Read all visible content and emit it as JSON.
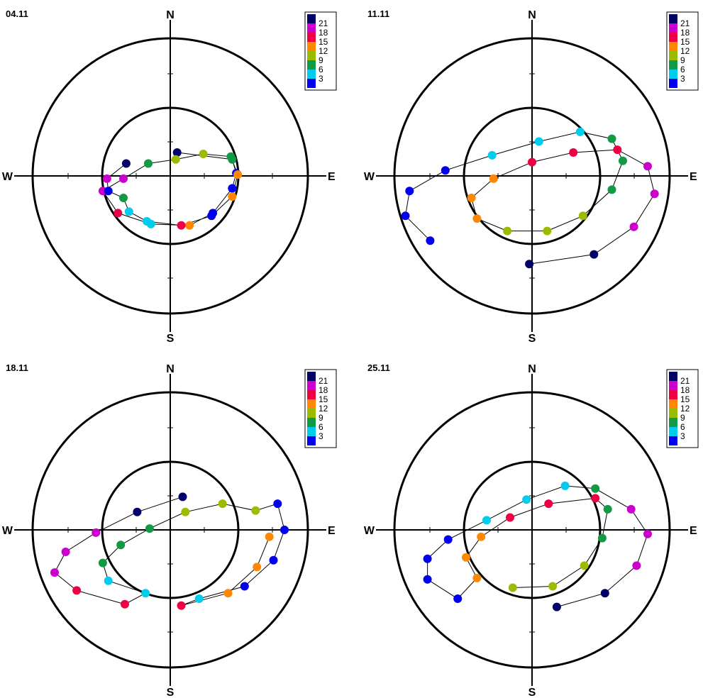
{
  "chart_data": [
    {
      "type": "scatter",
      "title": "04.11",
      "directions": {
        "north": "N",
        "south": "S",
        "east": "E",
        "west": "W"
      },
      "legend": {
        "position": "top-right",
        "labels": [
          "21",
          "18",
          "15",
          "12",
          "9",
          "6",
          "3"
        ]
      },
      "color_scale": [
        "#000066",
        "#cc00cc",
        "#ee0044",
        "#ff8800",
        "#99bb00",
        "#119944",
        "#00ccee",
        "#0000ee"
      ],
      "points": [
        {
          "x": 0.05,
          "y": 0.17,
          "c": 0
        },
        {
          "x": 0.45,
          "y": 0.12,
          "c": 5
        },
        {
          "x": 0.48,
          "y": 0.02,
          "c": 7
        },
        {
          "x": 0.45,
          "y": -0.09,
          "c": 7
        },
        {
          "x": 0.31,
          "y": -0.27,
          "c": 7
        },
        {
          "x": 0.14,
          "y": -0.36,
          "c": 3
        },
        {
          "x": -0.14,
          "y": -0.35,
          "c": 6
        },
        {
          "x": -0.38,
          "y": -0.27,
          "c": 2
        },
        {
          "x": -0.49,
          "y": -0.11,
          "c": 1
        },
        {
          "x": -0.34,
          "y": -0.02,
          "c": 1
        },
        {
          "x": -0.16,
          "y": 0.09,
          "c": 5
        },
        {
          "x": 0.04,
          "y": 0.12,
          "c": 4
        },
        {
          "x": 0.24,
          "y": 0.16,
          "c": 4
        },
        {
          "x": 0.44,
          "y": 0.14,
          "c": 5
        },
        {
          "x": 0.49,
          "y": 0.01,
          "c": 3
        },
        {
          "x": 0.45,
          "y": -0.15,
          "c": 3
        },
        {
          "x": 0.3,
          "y": -0.29,
          "c": 7
        },
        {
          "x": 0.08,
          "y": -0.36,
          "c": 2
        },
        {
          "x": -0.17,
          "y": -0.33,
          "c": 6
        },
        {
          "x": -0.3,
          "y": -0.26,
          "c": 6
        },
        {
          "x": -0.34,
          "y": -0.16,
          "c": 5
        },
        {
          "x": -0.45,
          "y": -0.11,
          "c": 7
        },
        {
          "x": -0.46,
          "y": -0.02,
          "c": 1
        },
        {
          "x": -0.32,
          "y": 0.09,
          "c": 0
        }
      ]
    },
    {
      "type": "scatter",
      "title": "11.11",
      "directions": {
        "north": "N",
        "south": "S",
        "east": "E",
        "west": "W"
      },
      "legend": {
        "position": "top-right",
        "labels": [
          "21",
          "18",
          "15",
          "12",
          "9",
          "6",
          "3"
        ]
      },
      "color_scale": [
        "#000066",
        "#cc00cc",
        "#ee0044",
        "#ff8800",
        "#99bb00",
        "#119944",
        "#00ccee",
        "#0000ee"
      ],
      "points": [
        {
          "x": -0.02,
          "y": -0.64,
          "c": 0
        },
        {
          "x": 0.45,
          "y": -0.57,
          "c": 0
        },
        {
          "x": 0.74,
          "y": -0.37,
          "c": 1
        },
        {
          "x": 0.89,
          "y": -0.13,
          "c": 1
        },
        {
          "x": 0.84,
          "y": 0.07,
          "c": 1
        },
        {
          "x": 0.62,
          "y": 0.19,
          "c": 2
        },
        {
          "x": 0.3,
          "y": 0.17,
          "c": 2
        },
        {
          "x": 0.0,
          "y": 0.1,
          "c": 2
        },
        {
          "x": -0.28,
          "y": -0.02,
          "c": 3
        },
        {
          "x": -0.44,
          "y": -0.16,
          "c": 3
        },
        {
          "x": -0.4,
          "y": -0.31,
          "c": 3
        },
        {
          "x": -0.18,
          "y": -0.4,
          "c": 4
        },
        {
          "x": 0.11,
          "y": -0.4,
          "c": 4
        },
        {
          "x": 0.37,
          "y": -0.29,
          "c": 4
        },
        {
          "x": 0.58,
          "y": -0.1,
          "c": 5
        },
        {
          "x": 0.66,
          "y": 0.11,
          "c": 5
        },
        {
          "x": 0.58,
          "y": 0.27,
          "c": 5
        },
        {
          "x": 0.35,
          "y": 0.32,
          "c": 6
        },
        {
          "x": 0.05,
          "y": 0.25,
          "c": 6
        },
        {
          "x": -0.29,
          "y": 0.15,
          "c": 6
        },
        {
          "x": -0.63,
          "y": 0.04,
          "c": 7
        },
        {
          "x": -0.89,
          "y": -0.11,
          "c": 7
        },
        {
          "x": -0.92,
          "y": -0.29,
          "c": 7
        },
        {
          "x": -0.74,
          "y": -0.47,
          "c": 7
        }
      ]
    },
    {
      "type": "scatter",
      "title": "18.11",
      "directions": {
        "north": "N",
        "south": "S",
        "east": "E",
        "west": "W"
      },
      "legend": {
        "position": "top-right",
        "labels": [
          "21",
          "18",
          "15",
          "12",
          "9",
          "6",
          "3"
        ]
      },
      "color_scale": [
        "#000066",
        "#cc00cc",
        "#ee0044",
        "#ff8800",
        "#99bb00",
        "#119944",
        "#00ccee",
        "#0000ee"
      ],
      "points": [
        {
          "x": 0.09,
          "y": 0.24,
          "c": 0
        },
        {
          "x": -0.24,
          "y": 0.13,
          "c": 0
        },
        {
          "x": -0.54,
          "y": -0.02,
          "c": 1
        },
        {
          "x": -0.76,
          "y": -0.16,
          "c": 1
        },
        {
          "x": -0.84,
          "y": -0.31,
          "c": 1
        },
        {
          "x": -0.68,
          "y": -0.44,
          "c": 2
        },
        {
          "x": -0.33,
          "y": -0.54,
          "c": 2
        },
        {
          "x": -0.18,
          "y": -0.46,
          "c": 6
        },
        {
          "x": -0.45,
          "y": -0.37,
          "c": 6
        },
        {
          "x": -0.49,
          "y": -0.24,
          "c": 5
        },
        {
          "x": -0.36,
          "y": -0.11,
          "c": 5
        },
        {
          "x": -0.15,
          "y": 0.01,
          "c": 5
        },
        {
          "x": 0.11,
          "y": 0.13,
          "c": 4
        },
        {
          "x": 0.38,
          "y": 0.19,
          "c": 4
        },
        {
          "x": 0.62,
          "y": 0.14,
          "c": 4
        },
        {
          "x": 0.78,
          "y": 0.19,
          "c": 7
        },
        {
          "x": 0.83,
          "y": 0.0,
          "c": 7
        },
        {
          "x": 0.75,
          "y": -0.22,
          "c": 7
        },
        {
          "x": 0.54,
          "y": -0.41,
          "c": 7
        },
        {
          "x": 0.21,
          "y": -0.5,
          "c": 6
        },
        {
          "x": 0.08,
          "y": -0.55,
          "c": 2
        },
        {
          "x": 0.42,
          "y": -0.46,
          "c": 3
        },
        {
          "x": 0.63,
          "y": -0.27,
          "c": 3
        },
        {
          "x": 0.72,
          "y": -0.05,
          "c": 3
        }
      ]
    },
    {
      "type": "scatter",
      "title": "25.11",
      "directions": {
        "north": "N",
        "south": "S",
        "east": "E",
        "west": "W"
      },
      "legend": {
        "position": "top-right",
        "labels": [
          "21",
          "18",
          "15",
          "12",
          "9",
          "6",
          "3"
        ]
      },
      "color_scale": [
        "#000066",
        "#cc00cc",
        "#ee0044",
        "#ff8800",
        "#99bb00",
        "#119944",
        "#00ccee",
        "#0000ee"
      ],
      "points": [
        {
          "x": 0.18,
          "y": -0.56,
          "c": 0
        },
        {
          "x": 0.53,
          "y": -0.46,
          "c": 0
        },
        {
          "x": 0.76,
          "y": -0.26,
          "c": 1
        },
        {
          "x": 0.84,
          "y": -0.03,
          "c": 1
        },
        {
          "x": 0.72,
          "y": 0.15,
          "c": 1
        },
        {
          "x": 0.46,
          "y": 0.3,
          "c": 5
        },
        {
          "x": 0.24,
          "y": 0.32,
          "c": 6
        },
        {
          "x": -0.04,
          "y": 0.22,
          "c": 6
        },
        {
          "x": -0.33,
          "y": 0.07,
          "c": 6
        },
        {
          "x": -0.61,
          "y": -0.07,
          "c": 7
        },
        {
          "x": -0.76,
          "y": -0.21,
          "c": 7
        },
        {
          "x": -0.76,
          "y": -0.36,
          "c": 7
        },
        {
          "x": -0.54,
          "y": -0.5,
          "c": 7
        },
        {
          "x": -0.4,
          "y": -0.35,
          "c": 3
        },
        {
          "x": -0.48,
          "y": -0.2,
          "c": 3
        },
        {
          "x": -0.37,
          "y": -0.05,
          "c": 3
        },
        {
          "x": -0.16,
          "y": 0.09,
          "c": 2
        },
        {
          "x": 0.12,
          "y": 0.19,
          "c": 2
        },
        {
          "x": 0.46,
          "y": 0.23,
          "c": 2
        },
        {
          "x": 0.55,
          "y": 0.15,
          "c": 5
        },
        {
          "x": 0.51,
          "y": -0.06,
          "c": 5
        },
        {
          "x": 0.38,
          "y": -0.26,
          "c": 4
        },
        {
          "x": 0.15,
          "y": -0.41,
          "c": 4
        },
        {
          "x": -0.14,
          "y": -0.42,
          "c": 4
        }
      ]
    }
  ]
}
